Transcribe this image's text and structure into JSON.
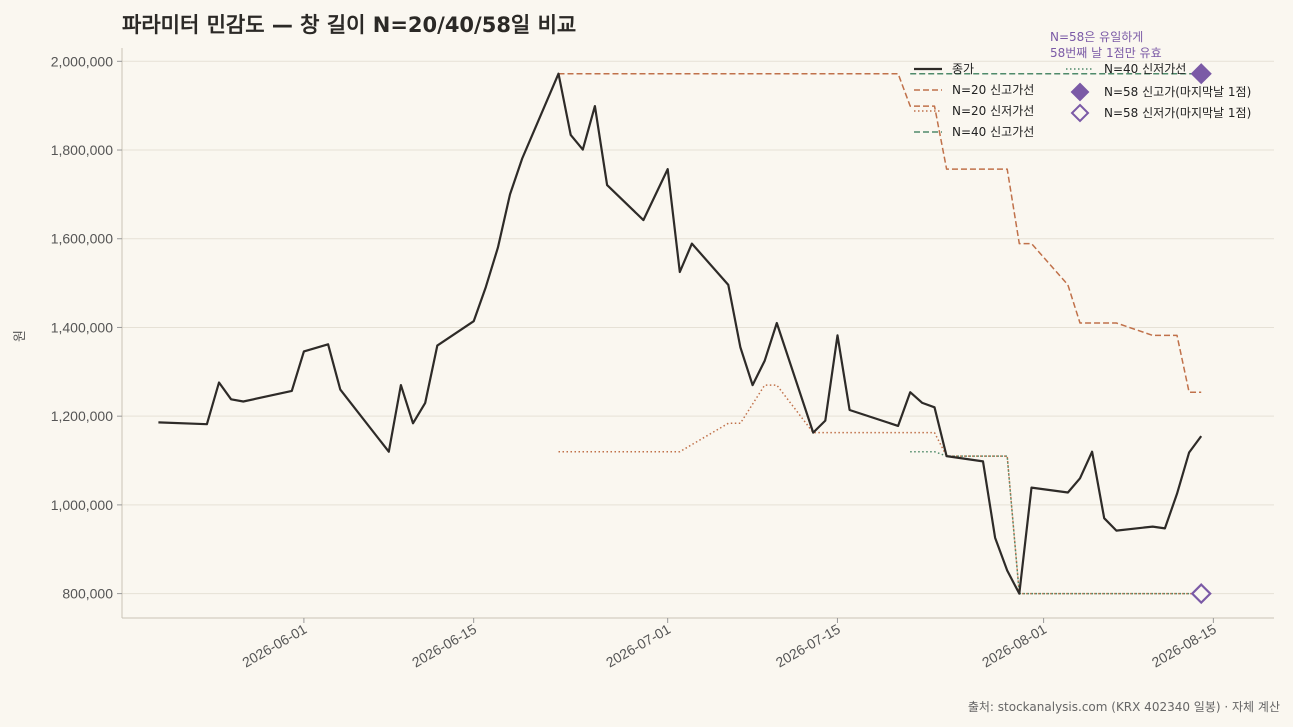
{
  "chart_data": {
    "type": "line",
    "title": "파라미터 민감도 — 창 길이 N=20/40/58일 비교",
    "ylabel": "원",
    "xlabel": "",
    "ylim": [
      745000,
      2030000
    ],
    "xlim": [
      "2026-05-17",
      "2026-08-20"
    ],
    "y_ticks": [
      800000,
      1000000,
      1200000,
      1400000,
      1600000,
      1800000,
      2000000
    ],
    "y_tick_labels": [
      "800,000",
      "1,000,000",
      "1,200,000",
      "1,400,000",
      "1,600,000",
      "1,800,000",
      "2,000,000"
    ],
    "x_ticks": [
      "2026-06-01",
      "2026-06-15",
      "2026-07-01",
      "2026-07-15",
      "2026-08-01",
      "2026-08-15"
    ],
    "grid": "horizontal",
    "legend_position": "top-right",
    "source_text": "출처: stockanalysis.com (KRX 402340 일봉) · 자체 계산",
    "annotation": [
      "N=58은 유일하게",
      "58번째 날 1점만 유효"
    ],
    "series": [
      {
        "name": "종가",
        "color": "#2e2b28",
        "style": "solid",
        "points": [
          [
            "2026-05-20",
            1186000
          ],
          [
            "2026-05-24",
            1182000
          ],
          [
            "2026-05-25",
            1276000
          ],
          [
            "2026-05-26",
            1238000
          ],
          [
            "2026-05-27",
            1233000
          ],
          [
            "2026-05-31",
            1257000
          ],
          [
            "2026-06-01",
            1346000
          ],
          [
            "2026-06-03",
            1362000
          ],
          [
            "2026-06-04",
            1260000
          ],
          [
            "2026-06-08",
            1120000
          ],
          [
            "2026-06-09",
            1270000
          ],
          [
            "2026-06-10",
            1184000
          ],
          [
            "2026-06-11",
            1230000
          ],
          [
            "2026-06-12",
            1359000
          ],
          [
            "2026-06-15",
            1414000
          ],
          [
            "2026-06-16",
            1491000
          ],
          [
            "2026-06-17",
            1580000
          ],
          [
            "2026-06-18",
            1700000
          ],
          [
            "2026-06-19",
            1781000
          ],
          [
            "2026-06-22",
            1972000
          ],
          [
            "2026-06-23",
            1834000
          ],
          [
            "2026-06-24",
            1801000
          ],
          [
            "2026-06-25",
            1899000
          ],
          [
            "2026-06-26",
            1721000
          ],
          [
            "2026-06-29",
            1642000
          ],
          [
            "2026-07-01",
            1757000
          ],
          [
            "2026-07-02",
            1525000
          ],
          [
            "2026-07-03",
            1589000
          ],
          [
            "2026-07-06",
            1496000
          ],
          [
            "2026-07-07",
            1355000
          ],
          [
            "2026-07-08",
            1270000
          ],
          [
            "2026-07-09",
            1325000
          ],
          [
            "2026-07-10",
            1410000
          ],
          [
            "2026-07-13",
            1163000
          ],
          [
            "2026-07-14",
            1190000
          ],
          [
            "2026-07-15",
            1382000
          ],
          [
            "2026-07-16",
            1214000
          ],
          [
            "2026-07-20",
            1178000
          ],
          [
            "2026-07-21",
            1254000
          ],
          [
            "2026-07-22",
            1230000
          ],
          [
            "2026-07-23",
            1220000
          ],
          [
            "2026-07-24",
            1110000
          ],
          [
            "2026-07-27",
            1098000
          ],
          [
            "2026-07-28",
            926000
          ],
          [
            "2026-07-29",
            852000
          ],
          [
            "2026-07-30",
            800000
          ],
          [
            "2026-07-31",
            1039000
          ],
          [
            "2026-08-03",
            1028000
          ],
          [
            "2026-08-04",
            1060000
          ],
          [
            "2026-08-05",
            1120000
          ],
          [
            "2026-08-06",
            970000
          ],
          [
            "2026-08-07",
            942000
          ],
          [
            "2026-08-10",
            951000
          ],
          [
            "2026-08-11",
            947000
          ],
          [
            "2026-08-12",
            1025000
          ],
          [
            "2026-08-13",
            1118000
          ],
          [
            "2026-08-14",
            1155000
          ]
        ]
      },
      {
        "name": "N=20 신고가선",
        "color": "#c0714a",
        "style": "dashed",
        "points": [
          [
            "2026-06-22",
            1972000
          ],
          [
            "2026-07-20",
            1972000
          ],
          [
            "2026-07-21",
            1899000
          ],
          [
            "2026-07-23",
            1899000
          ],
          [
            "2026-07-24",
            1757000
          ],
          [
            "2026-07-29",
            1757000
          ],
          [
            "2026-07-30",
            1589000
          ],
          [
            "2026-07-31",
            1589000
          ],
          [
            "2026-08-03",
            1496000
          ],
          [
            "2026-08-04",
            1410000
          ],
          [
            "2026-08-07",
            1410000
          ],
          [
            "2026-08-10",
            1382000
          ],
          [
            "2026-08-12",
            1382000
          ],
          [
            "2026-08-13",
            1254000
          ],
          [
            "2026-08-14",
            1254000
          ]
        ]
      },
      {
        "name": "N=20 신저가선",
        "color": "#c0714a",
        "style": "dotted",
        "points": [
          [
            "2026-06-22",
            1120000
          ],
          [
            "2026-07-02",
            1120000
          ],
          [
            "2026-07-06",
            1184000
          ],
          [
            "2026-07-07",
            1184000
          ],
          [
            "2026-07-09",
            1270000
          ],
          [
            "2026-07-10",
            1270000
          ],
          [
            "2026-07-13",
            1163000
          ],
          [
            "2026-07-23",
            1163000
          ],
          [
            "2026-07-24",
            1110000
          ],
          [
            "2026-07-29",
            1110000
          ],
          [
            "2026-07-30",
            800000
          ],
          [
            "2026-08-14",
            800000
          ]
        ]
      },
      {
        "name": "N=40 신고가선",
        "color": "#4f8a6a",
        "style": "dashed",
        "points": [
          [
            "2026-07-21",
            1972000
          ],
          [
            "2026-08-14",
            1972000
          ]
        ]
      },
      {
        "name": "N=40 신저가선",
        "color": "#4f8a6a",
        "style": "dotted",
        "points": [
          [
            "2026-07-21",
            1120000
          ],
          [
            "2026-07-23",
            1120000
          ],
          [
            "2026-07-24",
            1110000
          ],
          [
            "2026-07-29",
            1110000
          ],
          [
            "2026-07-30",
            800000
          ],
          [
            "2026-08-14",
            800000
          ]
        ]
      }
    ],
    "markers": [
      {
        "name": "N=58 신고가(마지막날 1점)",
        "color": "#7b5aa6",
        "fill": true,
        "x": "2026-08-14",
        "y": 1972000
      },
      {
        "name": "N=58 신저가(마지막날 1점)",
        "color": "#7b5aa6",
        "fill": false,
        "x": "2026-08-14",
        "y": 800000
      }
    ]
  }
}
